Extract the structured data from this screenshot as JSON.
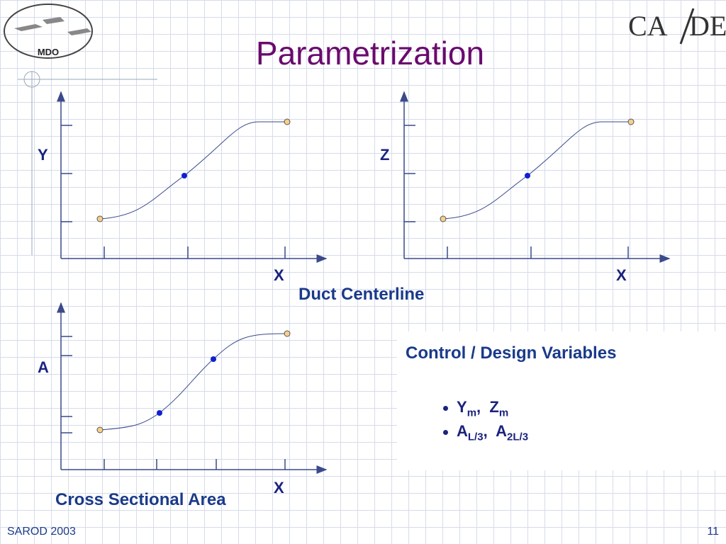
{
  "header": {
    "title": "Parametrization",
    "logo_left": "MDO",
    "logo_right": [
      "CA",
      "DE"
    ]
  },
  "plots": [
    {
      "y_label": "Y",
      "x_label": "X"
    },
    {
      "y_label": "Z",
      "x_label": "X"
    },
    {
      "y_label": "A",
      "x_label": "X"
    }
  ],
  "captions": {
    "duct": "Duct Centerline",
    "area": "Cross Sectional Area"
  },
  "variables": {
    "heading": "Control / Design Variables",
    "separator": ",",
    "items": [
      [
        {
          "base": "Y",
          "sub": "m"
        },
        {
          "base": "Z",
          "sub": "m"
        }
      ],
      [
        {
          "base": "A",
          "sub": "L/3"
        },
        {
          "base": "A",
          "sub": "2L/3"
        }
      ]
    ]
  },
  "footer": {
    "left": "SAROD 2003",
    "right": "11"
  }
}
